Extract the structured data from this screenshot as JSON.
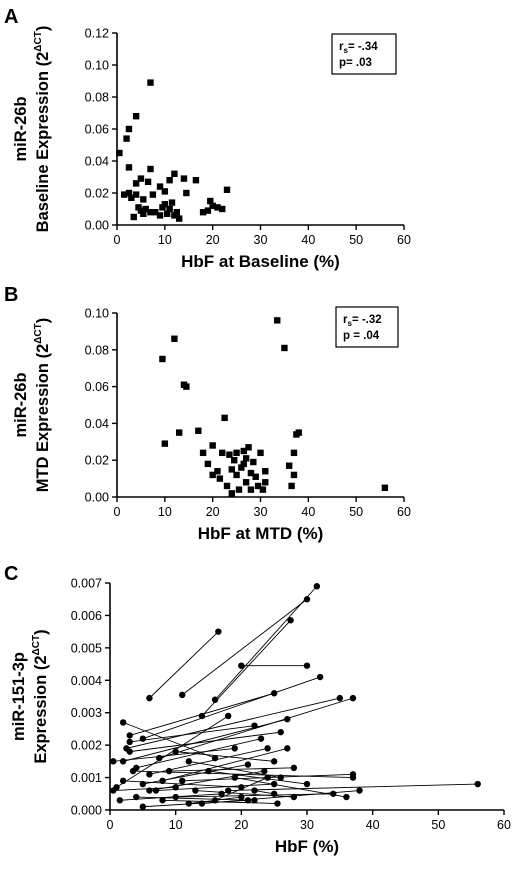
{
  "figure": {
    "panels": [
      "A",
      "B",
      "C"
    ]
  },
  "chart_data": [
    {
      "panel": "A",
      "type": "scatter",
      "marker": "square",
      "xlabel": "HbF at Baseline (%)",
      "ylabel_line1": "miR-26b",
      "ylabel_line2": "Baseline Expression (2",
      "ylabel_sup": "ΔCT",
      "ylabel_close": ")",
      "xlim": [
        0,
        60
      ],
      "ylim": [
        0,
        0.12
      ],
      "xticks": [
        "0",
        "10",
        "20",
        "30",
        "40",
        "50",
        "60"
      ],
      "yticks": [
        "0.00",
        "0.02",
        "0.04",
        "0.06",
        "0.08",
        "0.10",
        "0.12"
      ],
      "stats": {
        "rs_label": "r",
        "rs_sub": "s",
        "rs_value": "= -.34",
        "p_text": "p= .03"
      },
      "points": [
        [
          0.5,
          0.045
        ],
        [
          1.5,
          0.019
        ],
        [
          2.0,
          0.054
        ],
        [
          2.5,
          0.06
        ],
        [
          2.5,
          0.036
        ],
        [
          2.5,
          0.02
        ],
        [
          3.0,
          0.017
        ],
        [
          3.5,
          0.005
        ],
        [
          4.0,
          0.068
        ],
        [
          4.0,
          0.026
        ],
        [
          4.0,
          0.019
        ],
        [
          4.5,
          0.011
        ],
        [
          5.0,
          0.029
        ],
        [
          5.0,
          0.009
        ],
        [
          5.5,
          0.016
        ],
        [
          5.5,
          0.007
        ],
        [
          6.0,
          0.01
        ],
        [
          6.5,
          0.027
        ],
        [
          7.0,
          0.089
        ],
        [
          7.0,
          0.035
        ],
        [
          7.0,
          0.008
        ],
        [
          7.5,
          0.019
        ],
        [
          8.0,
          0.008
        ],
        [
          9.0,
          0.024
        ],
        [
          9.0,
          0.006
        ],
        [
          9.5,
          0.011
        ],
        [
          10.0,
          0.021
        ],
        [
          10.0,
          0.013
        ],
        [
          10.5,
          0.007
        ],
        [
          11.0,
          0.028
        ],
        [
          11.0,
          0.01
        ],
        [
          11.5,
          0.014
        ],
        [
          12.0,
          0.032
        ],
        [
          12.0,
          0.006
        ],
        [
          12.5,
          0.008
        ],
        [
          13.0,
          0.004
        ],
        [
          14.0,
          0.029
        ],
        [
          14.5,
          0.02
        ],
        [
          16.5,
          0.028
        ],
        [
          18.0,
          0.008
        ],
        [
          19.0,
          0.009
        ],
        [
          19.5,
          0.015
        ],
        [
          20.0,
          0.012
        ],
        [
          21.0,
          0.011
        ],
        [
          22.0,
          0.01
        ],
        [
          23.0,
          0.022
        ]
      ]
    },
    {
      "panel": "B",
      "type": "scatter",
      "marker": "square",
      "xlabel": "HbF at MTD (%)",
      "ylabel_line1": "miR-26b",
      "ylabel_line2": "MTD Expression (2",
      "ylabel_sup": "ΔCT",
      "ylabel_close": ")",
      "xlim": [
        0,
        60
      ],
      "ylim": [
        0,
        0.1
      ],
      "xticks": [
        "0",
        "10",
        "20",
        "30",
        "40",
        "50",
        "60"
      ],
      "yticks": [
        "0.00",
        "0.02",
        "0.04",
        "0.06",
        "0.08",
        "0.10"
      ],
      "stats": {
        "rs_label": "r",
        "rs_sub": "s",
        "rs_value": "= -.32",
        "p_text": "p = .04"
      },
      "points": [
        [
          9.5,
          0.075
        ],
        [
          10.0,
          0.029
        ],
        [
          12.0,
          0.086
        ],
        [
          13.0,
          0.035
        ],
        [
          14.0,
          0.061
        ],
        [
          14.5,
          0.06
        ],
        [
          17.0,
          0.036
        ],
        [
          18.0,
          0.024
        ],
        [
          19.0,
          0.018
        ],
        [
          20.0,
          0.028
        ],
        [
          20.0,
          0.012
        ],
        [
          21.0,
          0.014
        ],
        [
          21.5,
          0.01
        ],
        [
          22.0,
          0.024
        ],
        [
          22.5,
          0.043
        ],
        [
          23.0,
          0.006
        ],
        [
          23.5,
          0.023
        ],
        [
          24.0,
          0.002
        ],
        [
          24.0,
          0.015
        ],
        [
          24.5,
          0.02
        ],
        [
          25.0,
          0.012
        ],
        [
          25.0,
          0.024
        ],
        [
          25.5,
          0.004
        ],
        [
          26.0,
          0.016
        ],
        [
          26.5,
          0.025
        ],
        [
          26.5,
          0.018
        ],
        [
          27.0,
          0.008
        ],
        [
          27.0,
          0.021
        ],
        [
          27.5,
          0.027
        ],
        [
          28.0,
          0.013
        ],
        [
          28.0,
          0.004
        ],
        [
          28.5,
          0.019
        ],
        [
          29.0,
          0.011
        ],
        [
          29.5,
          0.006
        ],
        [
          30.0,
          0.024
        ],
        [
          30.5,
          0.004
        ],
        [
          31.0,
          0.014
        ],
        [
          31.0,
          0.008
        ],
        [
          33.5,
          0.096
        ],
        [
          35.0,
          0.081
        ],
        [
          36.0,
          0.017
        ],
        [
          36.5,
          0.006
        ],
        [
          37.0,
          0.012
        ],
        [
          37.0,
          0.024
        ],
        [
          37.5,
          0.034
        ],
        [
          38.0,
          0.035
        ],
        [
          56.0,
          0.005
        ]
      ]
    },
    {
      "panel": "C",
      "type": "line",
      "marker": "circle",
      "xlabel": "HbF (%)",
      "ylabel_line1": "miR-151-3p",
      "ylabel_line2": "Expression (2",
      "ylabel_sup": "ΔCT",
      "ylabel_close": ")",
      "xlim": [
        0,
        60
      ],
      "ylim": [
        0,
        0.007
      ],
      "xticks": [
        "0",
        "10",
        "20",
        "30",
        "40",
        "50",
        "60"
      ],
      "yticks": [
        "0.000",
        "0.001",
        "0.002",
        "0.003",
        "0.004",
        "0.005",
        "0.006",
        "0.007"
      ],
      "pairs": [
        [
          [
            6.0,
            0.00345
          ],
          [
            16.5,
            0.0055
          ]
        ],
        [
          [
            11.0,
            0.00355
          ],
          [
            30.0,
            0.0065
          ]
        ],
        [
          [
            16.0,
            0.0034
          ],
          [
            31.5,
            0.0069
          ]
        ],
        [
          [
            14.0,
            0.0029
          ],
          [
            27.5,
            0.00585
          ]
        ],
        [
          [
            20.0,
            0.00445
          ],
          [
            30.0,
            0.00445
          ]
        ],
        [
          [
            3.0,
            0.0023
          ],
          [
            25.0,
            0.0036
          ]
        ],
        [
          [
            5.0,
            0.0022
          ],
          [
            32.0,
            0.0041
          ]
        ],
        [
          [
            2.5,
            0.0019
          ],
          [
            35.0,
            0.00345
          ]
        ],
        [
          [
            7.5,
            0.0016
          ],
          [
            37.0,
            0.00345
          ]
        ],
        [
          [
            3.0,
            0.0021
          ],
          [
            22.0,
            0.0026
          ]
        ],
        [
          [
            2.0,
            0.0015
          ],
          [
            27.0,
            0.0028
          ]
        ],
        [
          [
            0.5,
            0.0015
          ],
          [
            19.0,
            0.0019
          ]
        ],
        [
          [
            1.0,
            0.0007
          ],
          [
            18.0,
            0.0029
          ]
        ],
        [
          [
            3.0,
            0.0018
          ],
          [
            26.0,
            0.0024
          ]
        ],
        [
          [
            4.0,
            0.0013
          ],
          [
            23.0,
            0.0022
          ]
        ],
        [
          [
            2.0,
            0.0027
          ],
          [
            16.0,
            0.0016
          ]
        ],
        [
          [
            6.0,
            0.0011
          ],
          [
            24.0,
            0.0019
          ]
        ],
        [
          [
            8.0,
            0.0009
          ],
          [
            27.0,
            0.0019
          ]
        ],
        [
          [
            10.0,
            0.0018
          ],
          [
            25.0,
            0.0015
          ]
        ],
        [
          [
            5.0,
            0.0008
          ],
          [
            21.0,
            0.0014
          ]
        ],
        [
          [
            9.0,
            0.0012
          ],
          [
            28.0,
            0.0013
          ]
        ],
        [
          [
            3.5,
            0.0012
          ],
          [
            37.0,
            0.001
          ]
        ],
        [
          [
            6.0,
            0.0006
          ],
          [
            23.5,
            0.0012
          ]
        ],
        [
          [
            11.0,
            0.0009
          ],
          [
            37.0,
            0.0011
          ]
        ],
        [
          [
            12.0,
            0.0015
          ],
          [
            26.0,
            0.001
          ]
        ],
        [
          [
            2.0,
            0.0009
          ],
          [
            20.0,
            0.0007
          ]
        ],
        [
          [
            7.0,
            0.0006
          ],
          [
            25.0,
            0.0008
          ]
        ],
        [
          [
            1.5,
            0.0003
          ],
          [
            17.0,
            0.0005
          ]
        ],
        [
          [
            13.0,
            0.0006
          ],
          [
            28.0,
            0.0004
          ]
        ],
        [
          [
            4.0,
            0.0004
          ],
          [
            22.0,
            0.0003
          ]
        ],
        [
          [
            15.0,
            0.0012
          ],
          [
            30.0,
            0.0008
          ]
        ],
        [
          [
            10.0,
            0.0004
          ],
          [
            34.0,
            0.0005
          ]
        ],
        [
          [
            19.0,
            0.001
          ],
          [
            36.0,
            0.0004
          ]
        ],
        [
          [
            8.0,
            0.0003
          ],
          [
            25.5,
            0.0002
          ]
        ],
        [
          [
            5.0,
            0.0001
          ],
          [
            21.0,
            0.0003
          ]
        ],
        [
          [
            14.0,
            0.0002
          ],
          [
            38.0,
            0.0006
          ]
        ],
        [
          [
            18.0,
            0.0006
          ],
          [
            56.0,
            0.0008
          ]
        ],
        [
          [
            22.0,
            0.0006
          ],
          [
            25.0,
            0.0005
          ]
        ],
        [
          [
            16.0,
            0.0003
          ],
          [
            24.0,
            0.001
          ]
        ],
        [
          [
            12.0,
            0.0002
          ],
          [
            20.0,
            0.0004
          ]
        ],
        [
          [
            0.5,
            0.0006
          ],
          [
            10.0,
            0.0007
          ]
        ]
      ]
    }
  ]
}
